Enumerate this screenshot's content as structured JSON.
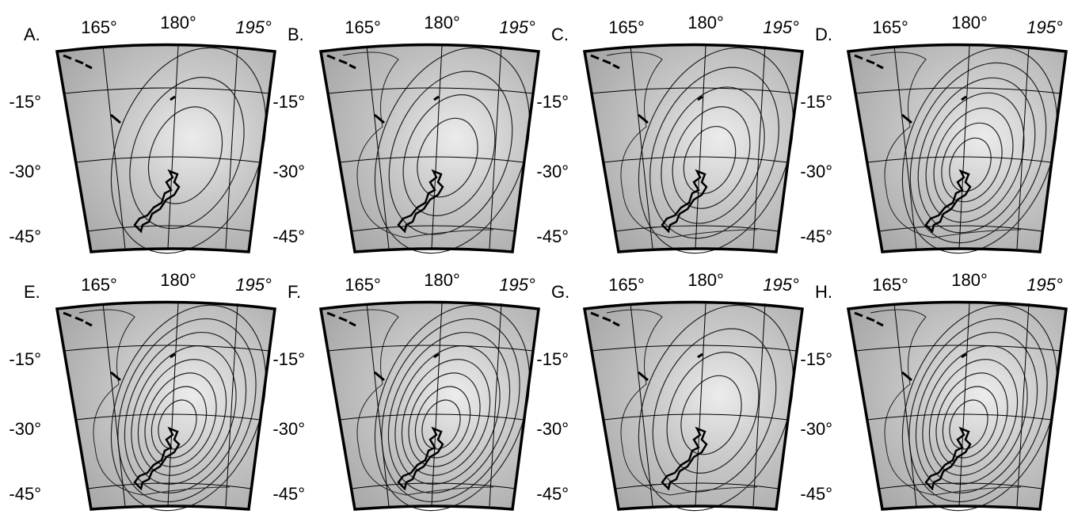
{
  "panels": [
    {
      "label": "A.",
      "lon_labels": [
        "165°",
        "180°",
        "195°"
      ],
      "lat_labels": [
        "-15°",
        "-30°",
        "-45°"
      ]
    },
    {
      "label": "B.",
      "lon_labels": [
        "165°",
        "180°",
        "195°"
      ],
      "lat_labels": [
        "-15°",
        "-30°",
        "-45°"
      ]
    },
    {
      "label": "C.",
      "lon_labels": [
        "165°",
        "180°",
        "195°"
      ],
      "lat_labels": [
        "-15°",
        "-30°",
        "-45°"
      ]
    },
    {
      "label": "D.",
      "lon_labels": [
        "165°",
        "180°",
        "195°"
      ],
      "lat_labels": [
        "-15°",
        "-30°",
        "-45°"
      ]
    },
    {
      "label": "E.",
      "lon_labels": [
        "165°",
        "180°",
        "195°"
      ],
      "lat_labels": [
        "-15°",
        "-30°",
        "-45°"
      ]
    },
    {
      "label": "F.",
      "lon_labels": [
        "165°",
        "180°",
        "195°"
      ],
      "lat_labels": [
        "-15°",
        "-30°",
        "-45°"
      ]
    },
    {
      "label": "G.",
      "lon_labels": [
        "165°",
        "180°",
        "195°"
      ],
      "lat_labels": [
        "-15°",
        "-30°",
        "-45°"
      ]
    },
    {
      "label": "H.",
      "lon_labels": [
        "165°",
        "180°",
        "195°"
      ],
      "lat_labels": [
        "-15°",
        "-30°",
        "-45°"
      ]
    }
  ]
}
